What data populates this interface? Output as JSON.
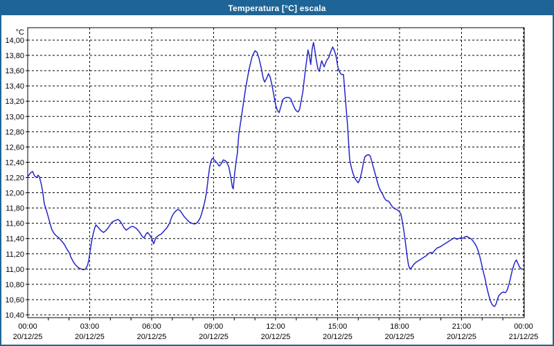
{
  "title": "Temperatura [°C] escala",
  "colors": {
    "titlebar": "#1f6496",
    "border": "#1f6496",
    "line": "#2323cb",
    "grid": "#000000",
    "background": "#ffffff",
    "text": "#000000"
  },
  "chart_data": {
    "type": "line",
    "title": "Temperatura [°C] escala",
    "unit_label": "°C",
    "x_unit": "minutes since 20/12/25 00:00",
    "xlim": [
      0,
      1440
    ],
    "ylim": [
      10.4,
      14.0
    ],
    "y_step": 0.2,
    "grid": "dashed",
    "legend": "none",
    "y_labels": [
      "14,00",
      "13,80",
      "13,60",
      "13,40",
      "13,20",
      "13,00",
      "12,80",
      "12,60",
      "12,40",
      "12,20",
      "12,00",
      "11,80",
      "11,60",
      "11,40",
      "11,20",
      "11,00",
      "10,80",
      "10,60",
      "10,40"
    ],
    "x_ticks": [
      {
        "t": 0,
        "time": "00:00",
        "date": "20/12/25"
      },
      {
        "t": 180,
        "time": "03:00",
        "date": "20/12/25"
      },
      {
        "t": 360,
        "time": "06:00",
        "date": "20/12/25"
      },
      {
        "t": 540,
        "time": "09:00",
        "date": "20/12/25"
      },
      {
        "t": 720,
        "time": "12:00",
        "date": "20/12/25"
      },
      {
        "t": 900,
        "time": "15:00",
        "date": "20/12/25"
      },
      {
        "t": 1080,
        "time": "18:00",
        "date": "20/12/25"
      },
      {
        "t": 1260,
        "time": "21:00",
        "date": "20/12/25"
      },
      {
        "t": 1440,
        "time": "00:00",
        "date": "21/12/25"
      }
    ],
    "series": [
      {
        "name": "Temperatura",
        "points": [
          [
            0,
            12.21
          ],
          [
            8,
            12.26
          ],
          [
            14,
            12.28
          ],
          [
            20,
            12.22
          ],
          [
            26,
            12.2
          ],
          [
            30,
            12.23
          ],
          [
            34,
            12.21
          ],
          [
            40,
            12.1
          ],
          [
            44,
            12.0
          ],
          [
            48,
            11.86
          ],
          [
            55,
            11.76
          ],
          [
            60,
            11.68
          ],
          [
            66,
            11.58
          ],
          [
            70,
            11.52
          ],
          [
            76,
            11.47
          ],
          [
            82,
            11.44
          ],
          [
            90,
            11.41
          ],
          [
            96,
            11.38
          ],
          [
            102,
            11.35
          ],
          [
            108,
            11.31
          ],
          [
            114,
            11.26
          ],
          [
            120,
            11.22
          ],
          [
            126,
            11.15
          ],
          [
            132,
            11.1
          ],
          [
            138,
            11.06
          ],
          [
            144,
            11.03
          ],
          [
            150,
            11.01
          ],
          [
            156,
            11.0
          ],
          [
            162,
            10.99
          ],
          [
            168,
            11.0
          ],
          [
            174,
            11.05
          ],
          [
            178,
            11.13
          ],
          [
            182,
            11.26
          ],
          [
            186,
            11.37
          ],
          [
            190,
            11.46
          ],
          [
            194,
            11.53
          ],
          [
            198,
            11.58
          ],
          [
            202,
            11.56
          ],
          [
            208,
            11.53
          ],
          [
            214,
            11.5
          ],
          [
            220,
            11.48
          ],
          [
            226,
            11.5
          ],
          [
            232,
            11.53
          ],
          [
            238,
            11.57
          ],
          [
            244,
            11.61
          ],
          [
            250,
            11.63
          ],
          [
            256,
            11.64
          ],
          [
            262,
            11.65
          ],
          [
            268,
            11.63
          ],
          [
            274,
            11.59
          ],
          [
            280,
            11.54
          ],
          [
            286,
            11.51
          ],
          [
            292,
            11.53
          ],
          [
            298,
            11.55
          ],
          [
            304,
            11.56
          ],
          [
            310,
            11.55
          ],
          [
            316,
            11.53
          ],
          [
            322,
            11.5
          ],
          [
            328,
            11.46
          ],
          [
            334,
            11.42
          ],
          [
            338,
            11.41
          ],
          [
            344,
            11.46
          ],
          [
            348,
            11.48
          ],
          [
            354,
            11.45
          ],
          [
            360,
            11.4
          ],
          [
            366,
            11.33
          ],
          [
            372,
            11.41
          ],
          [
            380,
            11.44
          ],
          [
            388,
            11.46
          ],
          [
            396,
            11.5
          ],
          [
            404,
            11.54
          ],
          [
            412,
            11.6
          ],
          [
            418,
            11.68
          ],
          [
            424,
            11.73
          ],
          [
            430,
            11.76
          ],
          [
            436,
            11.78
          ],
          [
            442,
            11.77
          ],
          [
            448,
            11.73
          ],
          [
            454,
            11.69
          ],
          [
            460,
            11.66
          ],
          [
            466,
            11.63
          ],
          [
            472,
            11.61
          ],
          [
            478,
            11.6
          ],
          [
            484,
            11.59
          ],
          [
            490,
            11.6
          ],
          [
            496,
            11.63
          ],
          [
            502,
            11.68
          ],
          [
            508,
            11.77
          ],
          [
            514,
            11.88
          ],
          [
            519,
            12.0
          ],
          [
            524,
            12.18
          ],
          [
            528,
            12.32
          ],
          [
            532,
            12.41
          ],
          [
            536,
            12.45
          ],
          [
            540,
            12.44
          ],
          [
            544,
            12.42
          ],
          [
            550,
            12.39
          ],
          [
            556,
            12.35
          ],
          [
            562,
            12.38
          ],
          [
            568,
            12.43
          ],
          [
            574,
            12.42
          ],
          [
            578,
            12.4
          ],
          [
            584,
            12.34
          ],
          [
            590,
            12.2
          ],
          [
            594,
            12.08
          ],
          [
            597,
            12.05
          ],
          [
            601,
            12.25
          ],
          [
            605,
            12.4
          ],
          [
            609,
            12.52
          ],
          [
            613,
            12.76
          ],
          [
            623,
            13.07
          ],
          [
            633,
            13.37
          ],
          [
            643,
            13.62
          ],
          [
            652,
            13.79
          ],
          [
            660,
            13.86
          ],
          [
            666,
            13.84
          ],
          [
            672,
            13.76
          ],
          [
            678,
            13.64
          ],
          [
            684,
            13.5
          ],
          [
            688,
            13.45
          ],
          [
            694,
            13.5
          ],
          [
            699,
            13.56
          ],
          [
            704,
            13.52
          ],
          [
            710,
            13.4
          ],
          [
            716,
            13.25
          ],
          [
            720,
            13.15
          ],
          [
            725,
            13.08
          ],
          [
            730,
            13.05
          ],
          [
            736,
            13.14
          ],
          [
            741,
            13.22
          ],
          [
            746,
            13.24
          ],
          [
            752,
            13.25
          ],
          [
            758,
            13.25
          ],
          [
            764,
            13.23
          ],
          [
            770,
            13.16
          ],
          [
            776,
            13.1
          ],
          [
            781,
            13.07
          ],
          [
            786,
            13.06
          ],
          [
            790,
            13.1
          ],
          [
            794,
            13.2
          ],
          [
            799,
            13.32
          ],
          [
            803,
            13.48
          ],
          [
            807,
            13.63
          ],
          [
            811,
            13.76
          ],
          [
            814,
            13.87
          ],
          [
            818,
            13.8
          ],
          [
            822,
            13.68
          ],
          [
            826,
            13.88
          ],
          [
            830,
            13.97
          ],
          [
            834,
            13.86
          ],
          [
            838,
            13.74
          ],
          [
            843,
            13.62
          ],
          [
            847,
            13.59
          ],
          [
            851,
            13.68
          ],
          [
            854,
            13.73
          ],
          [
            858,
            13.68
          ],
          [
            861,
            13.65
          ],
          [
            865,
            13.7
          ],
          [
            869,
            13.74
          ],
          [
            874,
            13.77
          ],
          [
            880,
            13.85
          ],
          [
            886,
            13.91
          ],
          [
            891,
            13.86
          ],
          [
            896,
            13.78
          ],
          [
            901,
            13.64
          ],
          [
            906,
            13.58
          ],
          [
            911,
            13.55
          ],
          [
            917,
            13.55
          ],
          [
            921,
            13.33
          ],
          [
            925,
            13.1
          ],
          [
            929,
            12.88
          ],
          [
            932,
            12.66
          ],
          [
            935,
            12.44
          ],
          [
            940,
            12.33
          ],
          [
            945,
            12.25
          ],
          [
            950,
            12.19
          ],
          [
            955,
            12.16
          ],
          [
            960,
            12.13
          ],
          [
            965,
            12.18
          ],
          [
            970,
            12.27
          ],
          [
            975,
            12.39
          ],
          [
            979,
            12.47
          ],
          [
            984,
            12.49
          ],
          [
            990,
            12.5
          ],
          [
            995,
            12.48
          ],
          [
            1000,
            12.4
          ],
          [
            1006,
            12.3
          ],
          [
            1012,
            12.2
          ],
          [
            1018,
            12.1
          ],
          [
            1024,
            12.03
          ],
          [
            1030,
            11.99
          ],
          [
            1036,
            11.93
          ],
          [
            1041,
            11.9
          ],
          [
            1048,
            11.89
          ],
          [
            1054,
            11.85
          ],
          [
            1060,
            11.81
          ],
          [
            1066,
            11.79
          ],
          [
            1072,
            11.78
          ],
          [
            1078,
            11.76
          ],
          [
            1084,
            11.72
          ],
          [
            1090,
            11.57
          ],
          [
            1094,
            11.45
          ],
          [
            1098,
            11.31
          ],
          [
            1102,
            11.17
          ],
          [
            1106,
            11.05
          ],
          [
            1110,
            11.0
          ],
          [
            1115,
            11.02
          ],
          [
            1121,
            11.06
          ],
          [
            1128,
            11.09
          ],
          [
            1135,
            11.11
          ],
          [
            1142,
            11.13
          ],
          [
            1149,
            11.15
          ],
          [
            1156,
            11.17
          ],
          [
            1163,
            11.2
          ],
          [
            1170,
            11.22
          ],
          [
            1176,
            11.21
          ],
          [
            1183,
            11.25
          ],
          [
            1190,
            11.28
          ],
          [
            1197,
            11.29
          ],
          [
            1204,
            11.31
          ],
          [
            1211,
            11.33
          ],
          [
            1218,
            11.35
          ],
          [
            1225,
            11.37
          ],
          [
            1232,
            11.39
          ],
          [
            1239,
            11.41
          ],
          [
            1246,
            11.39
          ],
          [
            1252,
            11.4
          ],
          [
            1258,
            11.41
          ],
          [
            1263,
            11.4
          ],
          [
            1269,
            11.42
          ],
          [
            1275,
            11.43
          ],
          [
            1281,
            11.41
          ],
          [
            1287,
            11.4
          ],
          [
            1293,
            11.37
          ],
          [
            1299,
            11.33
          ],
          [
            1304,
            11.29
          ],
          [
            1308,
            11.24
          ],
          [
            1312,
            11.18
          ],
          [
            1316,
            11.11
          ],
          [
            1320,
            11.03
          ],
          [
            1324,
            10.95
          ],
          [
            1328,
            10.88
          ],
          [
            1332,
            10.79
          ],
          [
            1336,
            10.71
          ],
          [
            1340,
            10.64
          ],
          [
            1344,
            10.58
          ],
          [
            1348,
            10.54
          ],
          [
            1352,
            10.52
          ],
          [
            1356,
            10.51
          ],
          [
            1360,
            10.54
          ],
          [
            1364,
            10.6
          ],
          [
            1368,
            10.65
          ],
          [
            1372,
            10.67
          ],
          [
            1377,
            10.69
          ],
          [
            1382,
            10.7
          ],
          [
            1387,
            10.69
          ],
          [
            1391,
            10.71
          ],
          [
            1395,
            10.76
          ],
          [
            1399,
            10.82
          ],
          [
            1403,
            10.9
          ],
          [
            1407,
            10.98
          ],
          [
            1411,
            11.04
          ],
          [
            1415,
            11.09
          ],
          [
            1419,
            11.12
          ],
          [
            1423,
            11.08
          ],
          [
            1427,
            11.04
          ],
          [
            1431,
            11.01
          ],
          [
            1435,
            11.0
          ]
        ]
      }
    ]
  }
}
